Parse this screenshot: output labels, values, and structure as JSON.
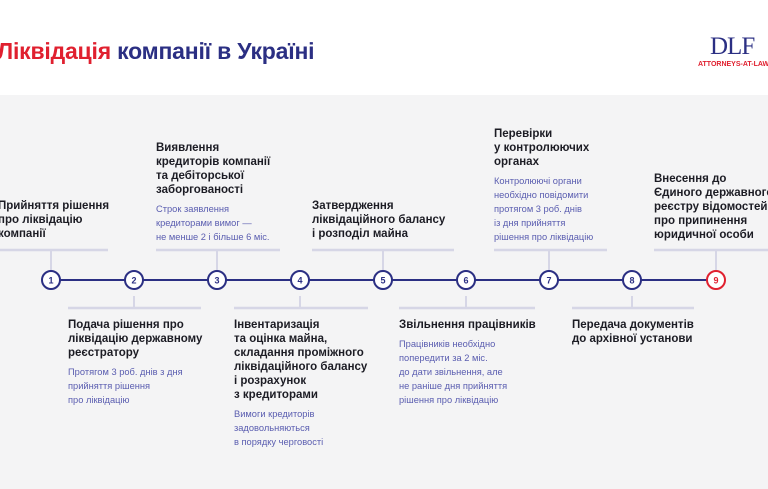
{
  "header": {
    "title_accent": "Ліквідація",
    "title_rest": " компанії в Україні",
    "logo_text": "DLF",
    "logo_sub": "ATTORNEYS-AT-LAW"
  },
  "colors": {
    "navy": "#2b2f83",
    "red": "#e0202f",
    "desc": "#5a5db0",
    "bg": "#f4f4f5"
  },
  "steps": [
    {
      "n": "1",
      "pos": "top",
      "title": [
        "Прийняття рішення",
        "про ліквідацію",
        "компанії"
      ],
      "desc": []
    },
    {
      "n": "2",
      "pos": "bottom",
      "title": [
        "Подача рішення про",
        "ліквідацію державному",
        "реєстратору"
      ],
      "desc": [
        "Протягом 3 роб. днів з дня",
        "прийняття рішення",
        "про ліквідацію"
      ]
    },
    {
      "n": "3",
      "pos": "top",
      "title": [
        "Виявлення",
        "кредиторів компанії",
        "та дебіторської",
        "заборгованості"
      ],
      "desc": [
        "Строк заявлення",
        "кредиторами вимог —",
        "не менше 2 і більше 6 міс."
      ]
    },
    {
      "n": "4",
      "pos": "bottom",
      "title": [
        "Інвентаризація",
        "та оцінка майна,",
        "складання проміжного",
        "ліквідаційного балансу",
        "і розрахунок",
        "з кредиторами"
      ],
      "desc": [
        "Вимоги кредиторів",
        "задовольняються",
        "в порядку черговості"
      ]
    },
    {
      "n": "5",
      "pos": "top",
      "title": [
        "Затвердження",
        "ліквідаційного балансу",
        "і розподіл майна"
      ],
      "desc": []
    },
    {
      "n": "6",
      "pos": "bottom",
      "title": [
        "Звільнення працівників"
      ],
      "desc": [
        "Працівників необхідно",
        "попередити за 2 міс.",
        "до дати звільнення, але",
        "не раніше дня прийняття",
        "рішення про ліквідацію"
      ]
    },
    {
      "n": "7",
      "pos": "top",
      "title": [
        "Перевірки",
        "у контролюючих",
        "органах"
      ],
      "desc": [
        "Контролюючі органи",
        "необхідно повідомити",
        "протягом 3 роб. днів",
        "із дня прийняття",
        "рішення про ліквідацію"
      ]
    },
    {
      "n": "8",
      "pos": "bottom",
      "title": [
        "Передача документів",
        "до архівної установи"
      ],
      "desc": []
    },
    {
      "n": "9",
      "pos": "top",
      "title": [
        "Внесення до",
        "Єдиного державного",
        "реєстру відомостей",
        "про припинення",
        "юридичної особи"
      ],
      "desc": []
    }
  ]
}
